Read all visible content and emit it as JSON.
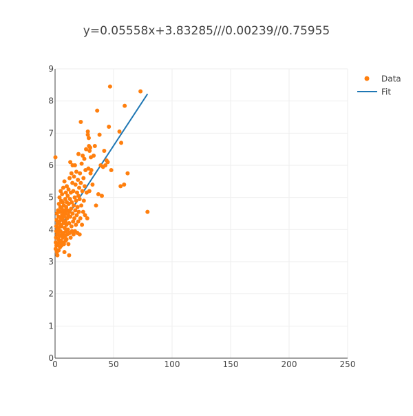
{
  "chart_data": {
    "type": "scatter",
    "title": "y=0.05558x+3.83285///0.00239//0.75955",
    "xlabel": "",
    "ylabel": "",
    "xlim": [
      0,
      250
    ],
    "ylim": [
      0,
      9
    ],
    "x_ticks": [
      "0",
      "50",
      "100",
      "150",
      "200",
      "250"
    ],
    "y_ticks": [
      "0",
      "1",
      "2",
      "3",
      "4",
      "5",
      "6",
      "7",
      "8",
      "9"
    ],
    "grid": true,
    "legend_position": "top-right",
    "colors": {
      "data": "#ff7f0e",
      "fit": "#1f77b4"
    },
    "series": [
      {
        "name": "Data",
        "mode": "markers",
        "points": [
          [
            0.3,
            6.25
          ],
          [
            0.5,
            3.4
          ],
          [
            0.6,
            3.6
          ],
          [
            0.8,
            3.75
          ],
          [
            1.0,
            3.95
          ],
          [
            1.0,
            4.1
          ],
          [
            1.2,
            3.5
          ],
          [
            1.3,
            4.3
          ],
          [
            1.5,
            3.3
          ],
          [
            1.6,
            4.5
          ],
          [
            1.8,
            3.85
          ],
          [
            2.0,
            4.0
          ],
          [
            2.0,
            3.2
          ],
          [
            2.2,
            4.2
          ],
          [
            2.3,
            3.55
          ],
          [
            2.5,
            4.6
          ],
          [
            2.6,
            3.9
          ],
          [
            2.8,
            3.7
          ],
          [
            3.0,
            4.4
          ],
          [
            3.0,
            3.35
          ],
          [
            3.2,
            4.05
          ],
          [
            3.3,
            4.8
          ],
          [
            3.5,
            3.6
          ],
          [
            3.6,
            4.25
          ],
          [
            3.8,
            5.0
          ],
          [
            4.0,
            3.8
          ],
          [
            4.0,
            4.55
          ],
          [
            4.2,
            3.45
          ],
          [
            4.3,
            4.15
          ],
          [
            4.5,
            4.7
          ],
          [
            4.6,
            3.95
          ],
          [
            4.8,
            5.2
          ],
          [
            5.0,
            3.65
          ],
          [
            5.0,
            4.35
          ],
          [
            5.2,
            4.9
          ],
          [
            5.4,
            3.5
          ],
          [
            5.5,
            4.1
          ],
          [
            5.7,
            4.65
          ],
          [
            5.8,
            3.85
          ],
          [
            6.0,
            4.45
          ],
          [
            6.0,
            5.1
          ],
          [
            6.2,
            3.6
          ],
          [
            6.4,
            4.3
          ],
          [
            6.5,
            4.85
          ],
          [
            6.7,
            3.75
          ],
          [
            6.8,
            4.55
          ],
          [
            7.0,
            5.3
          ],
          [
            7.2,
            3.9
          ],
          [
            7.3,
            4.2
          ],
          [
            7.5,
            4.75
          ],
          [
            7.6,
            3.55
          ],
          [
            7.8,
            4.4
          ],
          [
            8.0,
            5.5
          ],
          [
            8.0,
            3.3
          ],
          [
            8.2,
            4.05
          ],
          [
            8.4,
            4.6
          ],
          [
            8.5,
            3.8
          ],
          [
            8.7,
            4.95
          ],
          [
            8.8,
            4.25
          ],
          [
            9.0,
            3.65
          ],
          [
            9.0,
            4.5
          ],
          [
            9.2,
            5.15
          ],
          [
            9.4,
            3.95
          ],
          [
            9.5,
            4.7
          ],
          [
            9.7,
            4.15
          ],
          [
            9.8,
            3.7
          ],
          [
            10.0,
            4.85
          ],
          [
            10.0,
            5.35
          ],
          [
            10.3,
            4.35
          ],
          [
            10.5,
            3.85
          ],
          [
            10.6,
            4.6
          ],
          [
            10.8,
            5.05
          ],
          [
            11.0,
            4.0
          ],
          [
            11.2,
            4.45
          ],
          [
            11.4,
            3.55
          ],
          [
            11.5,
            5.25
          ],
          [
            11.7,
            4.8
          ],
          [
            12.0,
            4.2
          ],
          [
            12.0,
            3.2
          ],
          [
            12.2,
            4.55
          ],
          [
            12.4,
            5.6
          ],
          [
            12.6,
            3.9
          ],
          [
            12.8,
            4.95
          ],
          [
            13.0,
            4.4
          ],
          [
            13.0,
            6.1
          ],
          [
            13.3,
            3.75
          ],
          [
            13.5,
            5.15
          ],
          [
            13.7,
            4.65
          ],
          [
            14.0,
            4.1
          ],
          [
            14.0,
            5.75
          ],
          [
            14.3,
            4.85
          ],
          [
            14.5,
            3.95
          ],
          [
            14.8,
            5.45
          ],
          [
            15.0,
            4.5
          ],
          [
            15.0,
            6.0
          ],
          [
            15.4,
            4.25
          ],
          [
            15.6,
            5.2
          ],
          [
            15.8,
            3.85
          ],
          [
            16.0,
            4.75
          ],
          [
            16.2,
            5.65
          ],
          [
            16.5,
            4.35
          ],
          [
            16.8,
            5.0
          ],
          [
            17.0,
            6.0
          ],
          [
            17.0,
            3.95
          ],
          [
            17.3,
            4.6
          ],
          [
            17.5,
            5.4
          ],
          [
            17.8,
            4.15
          ],
          [
            18.0,
            4.9
          ],
          [
            18.2,
            5.8
          ],
          [
            18.5,
            4.45
          ],
          [
            18.8,
            5.15
          ],
          [
            19.0,
            3.9
          ],
          [
            19.2,
            4.7
          ],
          [
            19.5,
            5.55
          ],
          [
            19.8,
            4.25
          ],
          [
            20.0,
            5.05
          ],
          [
            20.0,
            6.35
          ],
          [
            20.3,
            4.55
          ],
          [
            20.6,
            5.3
          ],
          [
            21.0,
            3.85
          ],
          [
            21.0,
            4.95
          ],
          [
            21.3,
            5.75
          ],
          [
            21.6,
            4.35
          ],
          [
            22.0,
            7.35
          ],
          [
            22.0,
            5.45
          ],
          [
            22.4,
            4.75
          ],
          [
            22.7,
            6.05
          ],
          [
            23.0,
            4.15
          ],
          [
            23.3,
            5.2
          ],
          [
            23.6,
            6.3
          ],
          [
            24.0,
            4.55
          ],
          [
            24.3,
            5.6
          ],
          [
            24.6,
            4.9
          ],
          [
            25.0,
            6.2
          ],
          [
            25.3,
            5.35
          ],
          [
            25.6,
            4.45
          ],
          [
            26.0,
            5.85
          ],
          [
            26.5,
            6.5
          ],
          [
            27.0,
            5.15
          ],
          [
            27.5,
            4.35
          ],
          [
            28.0,
            6.95
          ],
          [
            28.0,
            7.05
          ],
          [
            28.5,
            5.9
          ],
          [
            28.8,
            6.85
          ],
          [
            29.0,
            6.6
          ],
          [
            29.3,
            5.2
          ],
          [
            29.5,
            6.45
          ],
          [
            30.0,
            6.55
          ],
          [
            30.3,
            5.75
          ],
          [
            30.6,
            6.25
          ],
          [
            31.0,
            5.85
          ],
          [
            32.0,
            5.4
          ],
          [
            33.0,
            6.3
          ],
          [
            34.0,
            6.6
          ],
          [
            35.0,
            4.75
          ],
          [
            36.0,
            7.7
          ],
          [
            37.0,
            5.1
          ],
          [
            38.0,
            6.95
          ],
          [
            39.0,
            6.0
          ],
          [
            40.0,
            5.05
          ],
          [
            41.0,
            5.95
          ],
          [
            42.0,
            6.45
          ],
          [
            43.0,
            6.0
          ],
          [
            44.0,
            6.15
          ],
          [
            45.0,
            6.1
          ],
          [
            46.0,
            7.2
          ],
          [
            47.0,
            8.45
          ],
          [
            48.0,
            5.85
          ],
          [
            55.0,
            7.05
          ],
          [
            56.0,
            5.35
          ],
          [
            56.5,
            6.7
          ],
          [
            59.0,
            5.4
          ],
          [
            59.5,
            7.85
          ],
          [
            62.0,
            5.75
          ],
          [
            73.0,
            8.3
          ],
          [
            79.0,
            4.55
          ]
        ]
      },
      {
        "name": "Fit",
        "mode": "line",
        "points": [
          [
            0.3,
            3.85
          ],
          [
            79,
            8.22
          ]
        ]
      }
    ]
  }
}
